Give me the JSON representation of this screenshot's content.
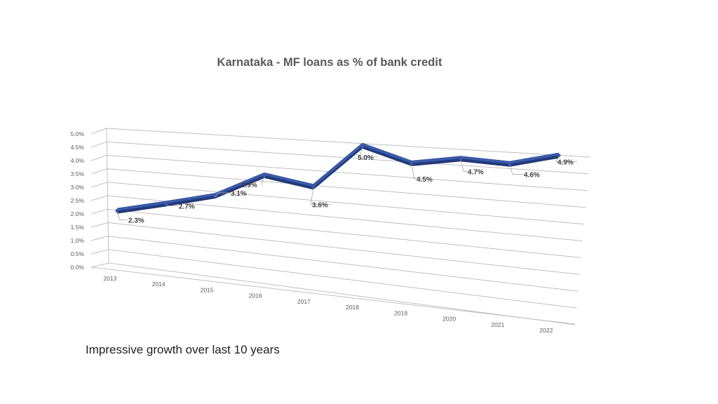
{
  "chart_data": {
    "type": "line",
    "title": "Karnataka - MF loans as % of bank credit",
    "categories": [
      "2013",
      "2014",
      "2015",
      "2016",
      "2017",
      "2018",
      "2019",
      "2020",
      "2021",
      "2022"
    ],
    "values": [
      2.3,
      2.7,
      3.1,
      3.9,
      3.6,
      5.0,
      4.5,
      4.7,
      4.6,
      4.9
    ],
    "data_labels": [
      "2.3%",
      "2.7%",
      "3.1%",
      "3.9%",
      "3.6%",
      "5.0%",
      "4.5%",
      "4.7%",
      "4.6%",
      "4.9%"
    ],
    "y_ticks": [
      "0.0%",
      "0.5%",
      "1.0%",
      "1.5%",
      "2.0%",
      "2.5%",
      "3.0%",
      "3.5%",
      "4.0%",
      "4.5%",
      "5.0%"
    ],
    "ylim": [
      0,
      5.0
    ],
    "xlabel": "",
    "ylabel": "",
    "grid": true,
    "style": "3d-line",
    "colors": {
      "line": "#3a5aa8",
      "line_dark": "#22397a",
      "grid": "#bfbfbf"
    }
  },
  "caption": "Impressive growth over last 10 years"
}
